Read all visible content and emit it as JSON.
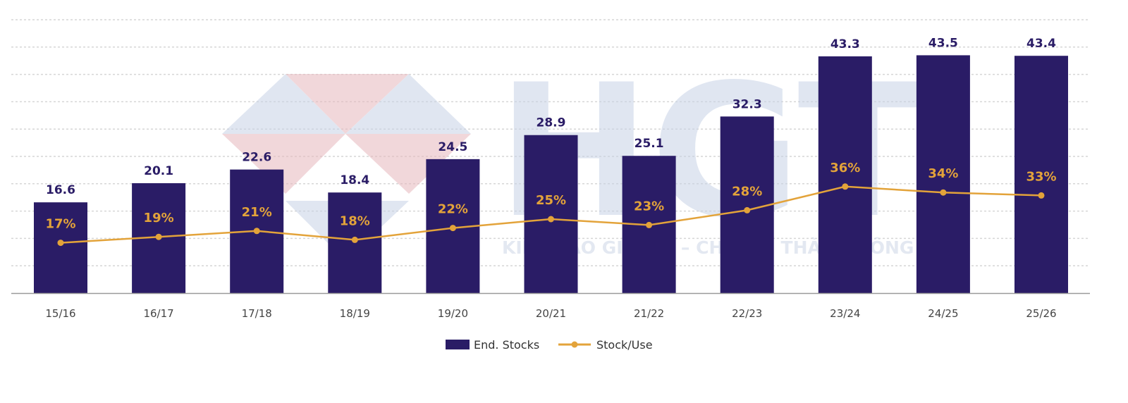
{
  "chart_data": {
    "type": "bar",
    "title": "",
    "xlabel": "",
    "ylabel": "",
    "categories": [
      "15/16",
      "16/17",
      "17/18",
      "18/19",
      "19/20",
      "20/21",
      "21/22",
      "22/23",
      "23/24",
      "24/25",
      "25/26"
    ],
    "series": [
      {
        "name": "End. Stocks",
        "type": "bar",
        "color": "#2a1c66",
        "values": [
          16.6,
          20.1,
          22.6,
          18.4,
          24.5,
          28.9,
          25.1,
          32.3,
          43.3,
          43.5,
          43.4
        ]
      },
      {
        "name": "Stock/Use",
        "type": "line",
        "color": "#e3a33a",
        "unit": "%",
        "values": [
          17,
          19,
          21,
          18,
          22,
          25,
          23,
          28,
          36,
          34,
          33
        ]
      }
    ],
    "ylim": [
      0,
      50
    ],
    "grid": true,
    "legend": "bottom-center",
    "watermark": {
      "logo": "HGT",
      "tagline": "KIẾN TẠO GIÁ TRỊ – CHIA SẺ THÀNH CÔNG"
    }
  }
}
